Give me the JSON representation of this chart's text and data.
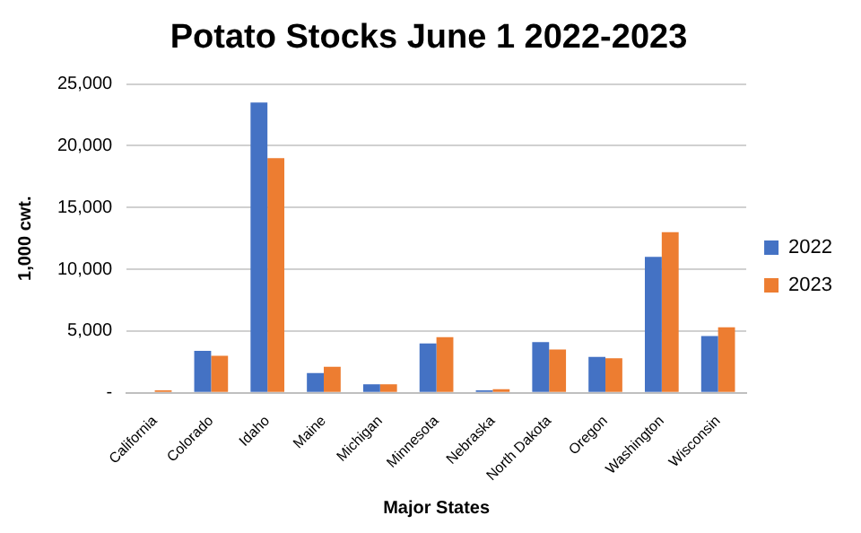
{
  "chart_data": {
    "type": "bar",
    "title": "Potato Stocks June 1 2022-2023",
    "xlabel": "Major States",
    "ylabel": "1,000 cwt.",
    "categories": [
      "California",
      "Colorado",
      "Idaho",
      "Maine",
      "Michigan",
      "Minnesota",
      "Nebraska",
      "North Dakota",
      "Oregon",
      "Washington",
      "Wisconsin"
    ],
    "series": [
      {
        "name": "2022",
        "color": "#4472c4",
        "values": [
          0,
          3400,
          23500,
          1600,
          700,
          4000,
          200,
          4100,
          2900,
          11000,
          4600
        ]
      },
      {
        "name": "2023",
        "color": "#ed7d31",
        "values": [
          200,
          3000,
          19000,
          2100,
          700,
          4500,
          300,
          3500,
          2800,
          13000,
          5300
        ]
      }
    ],
    "ylim": [
      0,
      25000
    ],
    "yticks": [
      {
        "value": 0,
        "label": "-"
      },
      {
        "value": 5000,
        "label": "5,000"
      },
      {
        "value": 10000,
        "label": "10,000"
      },
      {
        "value": 15000,
        "label": "15,000"
      },
      {
        "value": 20000,
        "label": "20,000"
      },
      {
        "value": 25000,
        "label": "25,000"
      }
    ],
    "grid": "y",
    "legend": "right"
  }
}
